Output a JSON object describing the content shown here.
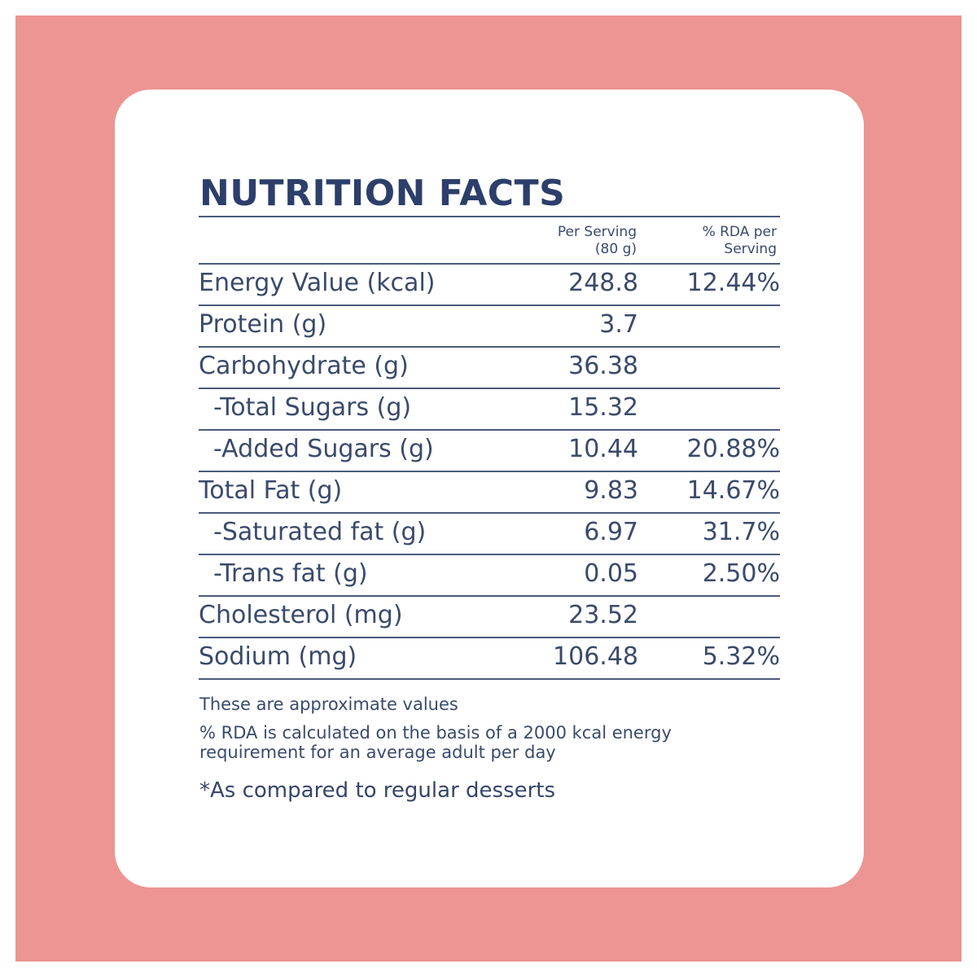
{
  "colors": {
    "frame": "#ec9593",
    "card": "#ffffff",
    "text": "#3a4a6b",
    "title": "#2c3e6a"
  },
  "title": "NUTRITION FACTS",
  "columns": {
    "per_serving_line1": "Per Serving",
    "per_serving_line2": "(80 g)",
    "rda_line1": "% RDA per",
    "rda_line2": "Serving"
  },
  "rows": [
    {
      "label": "Energy Value (kcal)",
      "value": "248.8",
      "rda": "12.44%"
    },
    {
      "label": "Protein (g)",
      "value": "3.7",
      "rda": ""
    },
    {
      "label": "Carbohydrate (g)",
      "value": "36.38",
      "rda": ""
    },
    {
      "label": "-Total Sugars (g)",
      "value": "15.32",
      "rda": ""
    },
    {
      "label": "-Added Sugars (g)",
      "value": "10.44",
      "rda": "20.88%"
    },
    {
      "label": "Total Fat (g)",
      "value": "9.83",
      "rda": "14.67%"
    },
    {
      "label": "-Saturated fat (g)",
      "value": "6.97",
      "rda": "31.7%"
    },
    {
      "label": "-Trans fat (g)",
      "value": "0.05",
      "rda": "2.50%"
    },
    {
      "label": "Cholesterol (mg)",
      "value": "23.52",
      "rda": ""
    },
    {
      "label": "Sodium (mg)",
      "value": "106.48",
      "rda": "5.32%"
    }
  ],
  "notes": {
    "approx": "These are approximate values",
    "rda_basis": "% RDA is calculated on the basis of a 2000 kcal energy requirement for an average adult per day",
    "comparison": "*As compared to regular desserts"
  }
}
